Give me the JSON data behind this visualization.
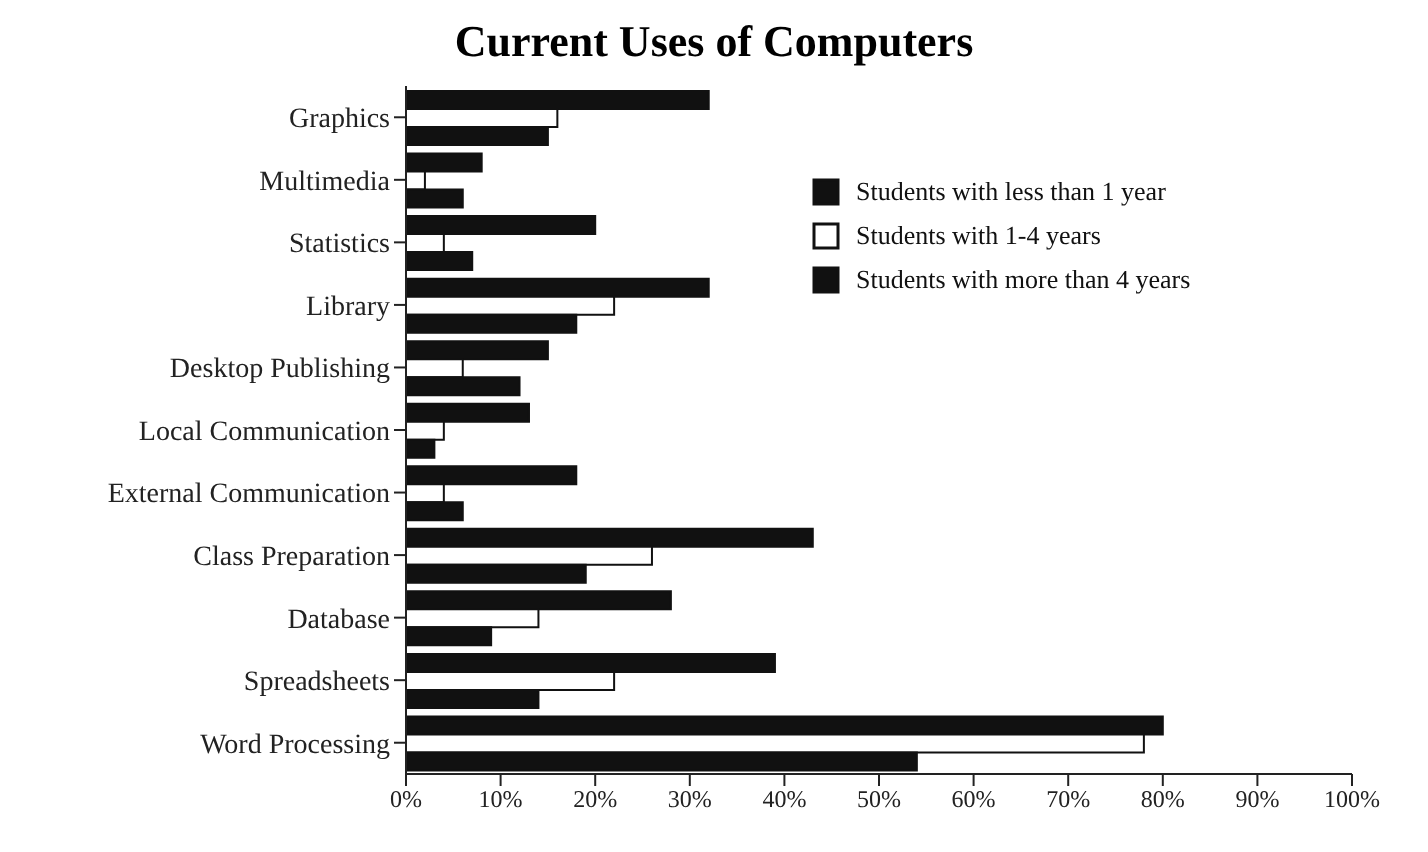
{
  "chart_data": {
    "type": "bar",
    "orientation": "horizontal",
    "title": "Current Uses of Computers",
    "categories": [
      "Graphics",
      "Multimedia",
      "Statistics",
      "Library",
      "Desktop Publishing",
      "Local Communication",
      "External Communication",
      "Class Preparation",
      "Database",
      "Spreadsheets",
      "Word Processing"
    ],
    "series": [
      {
        "name": "Students with less than 1 year",
        "color": "#111111",
        "values": [
          32,
          8,
          20,
          32,
          15,
          13,
          18,
          43,
          28,
          39,
          80
        ]
      },
      {
        "name": "Students with 1-4 years",
        "color": "#ffffff",
        "values": [
          16,
          2,
          4,
          22,
          6,
          4,
          4,
          26,
          14,
          22,
          78
        ]
      },
      {
        "name": "Students with more than 4 years",
        "color": "#111111",
        "values": [
          15,
          6,
          7,
          18,
          12,
          3,
          6,
          19,
          9,
          14,
          54
        ]
      }
    ],
    "xlim": [
      0,
      100
    ],
    "xticks": [
      {
        "value": 0,
        "label": "0%"
      },
      {
        "value": 10,
        "label": "10%"
      },
      {
        "value": 20,
        "label": "20%"
      },
      {
        "value": 30,
        "label": "30%"
      },
      {
        "value": 40,
        "label": "40%"
      },
      {
        "value": 50,
        "label": "50%"
      },
      {
        "value": 60,
        "label": "60%"
      },
      {
        "value": 70,
        "label": "70%"
      },
      {
        "value": 80,
        "label": "80%"
      },
      {
        "value": 90,
        "label": "90%"
      },
      {
        "value": 100,
        "label": "100%"
      }
    ],
    "grid": false,
    "legend": "top right"
  }
}
